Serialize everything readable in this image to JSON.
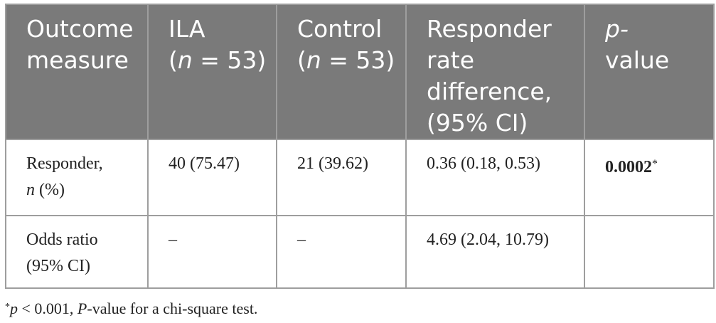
{
  "table": {
    "headers": {
      "outcome": [
        "Outcome",
        "measure"
      ],
      "ila": {
        "name": "ILA",
        "n_prefix": "(",
        "n_italic": "n",
        "n_suffix": " = 53)"
      },
      "control": {
        "name": "Control",
        "n_prefix": "(",
        "n_italic": "n",
        "n_suffix": " = 53)"
      },
      "difference": [
        "Responder",
        "rate",
        "difference,",
        "(95% CI)"
      ],
      "pvalue": [
        "p-",
        "value"
      ]
    },
    "rows": {
      "responder": {
        "label_line1": "Responder,",
        "label_italic": "n",
        "label_line2_rest": " (%)",
        "ila": "40 (75.47)",
        "control": "21 (39.62)",
        "difference": "0.36 (0.18, 0.53)",
        "pvalue": "0.0002",
        "pvalue_marker": "*"
      },
      "odds": {
        "label_line1": "Odds ratio",
        "label_line2": "(95% CI)",
        "ila": "–",
        "control": "–",
        "difference": "4.69 (2.04, 10.79)",
        "pvalue": ""
      }
    }
  },
  "footnote": {
    "marker": "*",
    "p_italic": "p",
    "threshold": " < 0.001, ",
    "P_italic": "P",
    "rest": "-value for a chi-square test."
  }
}
